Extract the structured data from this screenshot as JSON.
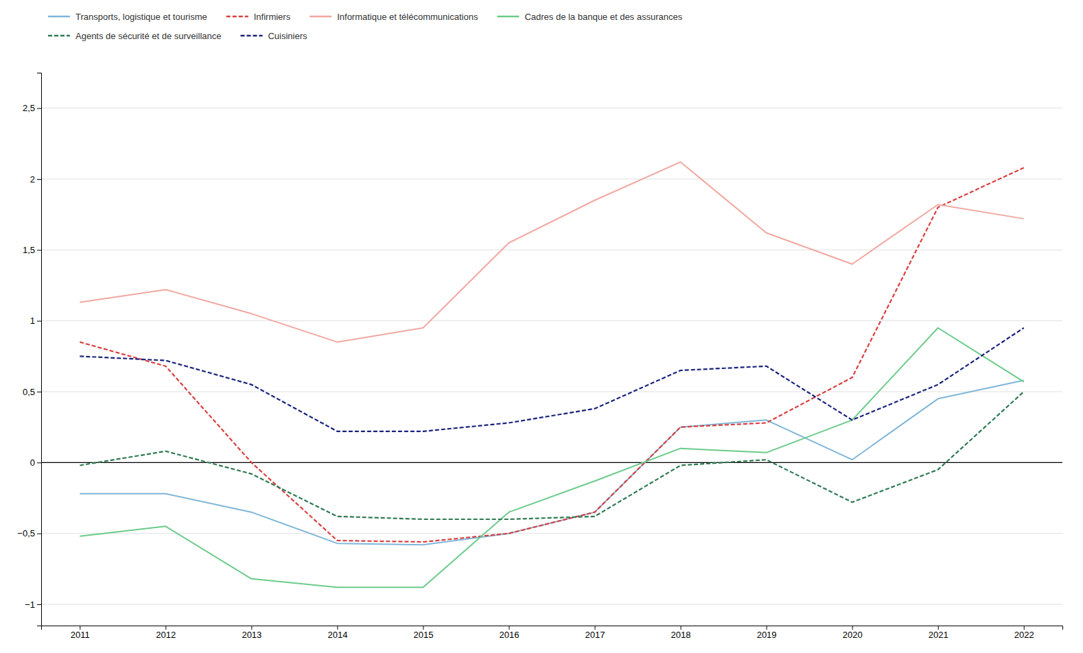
{
  "chart_data": {
    "type": "line",
    "x": [
      2011,
      2012,
      2013,
      2014,
      2015,
      2016,
      2017,
      2018,
      2019,
      2020,
      2021,
      2022
    ],
    "xlim": [
      2010.55,
      2022.45
    ],
    "xticks": [
      2011,
      2012,
      2013,
      2014,
      2015,
      2016,
      2017,
      2018,
      2019,
      2020,
      2021,
      2022
    ],
    "ylim": [
      -1.15,
      2.75
    ],
    "yticks": [
      {
        "value": -1,
        "label": "−1"
      },
      {
        "value": -0.5,
        "label": "−0,5"
      },
      0,
      {
        "value": 0.5,
        "label": "0,5"
      },
      1,
      {
        "value": 1.5,
        "label": "1,5"
      },
      2,
      {
        "value": 2.5,
        "label": "2,5"
      }
    ],
    "grid": true,
    "legend": "top",
    "series": [
      {
        "name": "Transports, logistique et tourisme",
        "color": "#7eb6d8",
        "line_style": "solid",
        "values": [
          -0.22,
          -0.22,
          -0.35,
          -0.57,
          -0.58,
          -0.5,
          -0.35,
          0.25,
          0.3,
          0.02,
          0.45,
          0.58
        ]
      },
      {
        "name": "Infirmiers",
        "color": "#d93f3f",
        "line_style": "dashed",
        "values": [
          0.85,
          0.68,
          0.0,
          -0.55,
          -0.56,
          -0.5,
          -0.35,
          0.25,
          0.28,
          0.6,
          1.8,
          2.08
        ]
      },
      {
        "name": "Informatique et télécommunications",
        "color": "#f0a8a0",
        "line_style": "solid",
        "values": [
          1.13,
          1.22,
          1.05,
          0.85,
          0.95,
          1.55,
          1.85,
          2.12,
          1.62,
          1.4,
          1.82,
          1.72
        ]
      },
      {
        "name": "Cadres de la banque et des assurances",
        "color": "#6acb8a",
        "line_style": "solid",
        "values": [
          -0.52,
          -0.45,
          -0.82,
          -0.88,
          -0.88,
          -0.35,
          -0.13,
          0.1,
          0.07,
          0.3,
          0.95,
          0.57
        ]
      },
      {
        "name": "Agents de sécurité et de surveillance",
        "color": "#2e7a52",
        "line_style": "dashed",
        "values": [
          -0.02,
          0.08,
          -0.08,
          -0.38,
          -0.4,
          -0.4,
          -0.38,
          -0.02,
          0.02,
          -0.28,
          -0.05,
          0.5
        ]
      },
      {
        "name": "Cuisiniers",
        "color": "#1a237e",
        "line_style": "dashed",
        "values": [
          0.75,
          0.72,
          0.55,
          0.22,
          0.22,
          0.28,
          0.38,
          0.65,
          0.68,
          0.3,
          0.55,
          0.95
        ]
      }
    ]
  }
}
